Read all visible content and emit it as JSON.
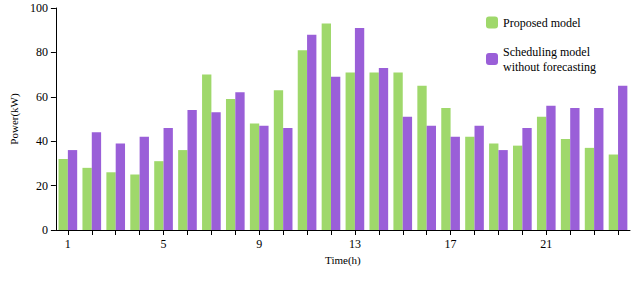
{
  "chart_data": {
    "type": "bar",
    "x_label": "Time(h)",
    "y_label": "Power(kW)",
    "categories": [
      "1",
      null,
      null,
      null,
      "5",
      null,
      null,
      null,
      "9",
      null,
      null,
      null,
      "13",
      null,
      null,
      null,
      "17",
      null,
      null,
      null,
      "21",
      null,
      null,
      null
    ],
    "series": [
      {
        "name": "Proposed model",
        "color": "#9fd86b",
        "values": [
          32,
          28,
          26,
          25,
          31,
          36,
          70,
          59,
          48,
          63,
          81,
          93,
          71,
          71,
          71,
          65,
          55,
          42,
          39,
          38,
          51,
          41,
          37,
          34
        ]
      },
      {
        "name": "Scheduling model without forecasting",
        "color": "#9a5fd8",
        "values": [
          36,
          44,
          39,
          42,
          46,
          54,
          53,
          62,
          47,
          46,
          88,
          69,
          91,
          73,
          51,
          47,
          42,
          47,
          36,
          46,
          56,
          55,
          55,
          65
        ]
      }
    ],
    "ylim": [
      0,
      100
    ],
    "yticks": [
      0,
      20,
      40,
      60,
      80,
      100
    ],
    "grid": false,
    "legend": "top-right"
  }
}
